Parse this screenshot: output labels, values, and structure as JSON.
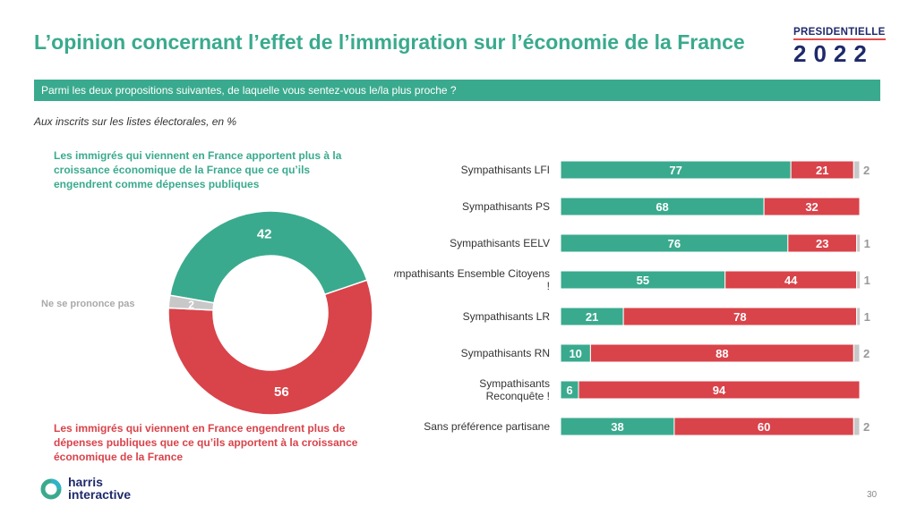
{
  "header": {
    "title": "L’opinion concernant l’effet de l’immigration sur l’économie de la France",
    "logo_top": "PRESIDENTIELLE",
    "logo_year": "2022"
  },
  "question": "Parmi les deux propositions suivantes, de laquelle vous sentez-vous le/la plus proche ?",
  "base": "Aux inscrits sur les listes électorales, en %",
  "legend": {
    "green": "Les immigrés qui viennent en France apportent plus à la croissance économique de la France que ce qu’ils engendrent comme dépenses publiques",
    "red": "Les immigrés qui viennent en France engendrent plus de dépenses publiques que ce qu’ils apportent à la croissance économique de la France",
    "nsp": "Ne se prononce pas"
  },
  "colors": {
    "green": "#3aaa8e",
    "red": "#d9434a",
    "grey": "#c8c8c8",
    "navy": "#1f2a6b"
  },
  "chart_data": [
    {
      "type": "pie",
      "categories": [
        "Apportent plus",
        "Engendrent plus de dépenses",
        "Ne se prononce pas"
      ],
      "values": [
        42,
        56,
        2
      ]
    },
    {
      "type": "bar",
      "orientation": "horizontal",
      "stacked": true,
      "categories": [
        "Sympathisants LFI",
        "Sympathisants PS",
        "Sympathisants EELV",
        "Sympathisants Ensemble Citoyens !",
        "Sympathisants LR",
        "Sympathisants RN",
        "Sympathisants Reconquête !",
        "Sans préférence partisane"
      ],
      "series": [
        {
          "values": [
            77,
            68,
            76,
            55,
            21,
            10,
            6,
            38
          ]
        },
        {
          "values": [
            21,
            32,
            23,
            44,
            78,
            88,
            94,
            60
          ]
        },
        {
          "values": [
            2,
            0,
            1,
            1,
            1,
            2,
            0,
            2
          ]
        }
      ]
    }
  ],
  "footer": {
    "brand_line1": "harris",
    "brand_line2": "interactive",
    "page": "30"
  }
}
